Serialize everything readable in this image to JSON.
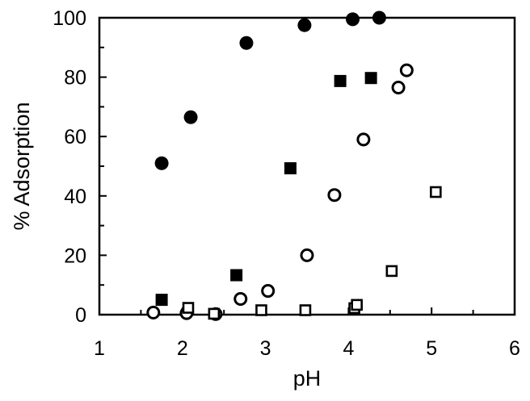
{
  "chart_data": {
    "type": "scatter",
    "title": "",
    "xlabel": "pH",
    "ylabel": "% Adsorption",
    "xlim": [
      1,
      6
    ],
    "ylim": [
      0,
      100
    ],
    "x_ticks": [
      "1",
      "2",
      "3",
      "4",
      "5",
      "6"
    ],
    "y_ticks": [
      "0",
      "20",
      "40",
      "60",
      "80",
      "100"
    ],
    "grid": false,
    "legend": "none",
    "series": [
      {
        "marker": "filled-circle",
        "color": "#000000",
        "points": [
          [
            1.75,
            51
          ],
          [
            2.1,
            66.5
          ],
          [
            2.77,
            91.5
          ],
          [
            3.47,
            97.5
          ],
          [
            4.05,
            99.5
          ],
          [
            4.37,
            100
          ]
        ]
      },
      {
        "marker": "filled-square",
        "color": "#000000",
        "points": [
          [
            1.75,
            5
          ],
          [
            2.65,
            13.3
          ],
          [
            3.3,
            49.3
          ],
          [
            3.9,
            78.7
          ],
          [
            4.27,
            79.7
          ]
        ]
      },
      {
        "marker": "open-circle",
        "color": "#000000",
        "points": [
          [
            1.65,
            0.7
          ],
          [
            2.05,
            0.5
          ],
          [
            2.4,
            0.2
          ],
          [
            2.7,
            5.3
          ],
          [
            3.03,
            8
          ],
          [
            3.5,
            20
          ],
          [
            3.83,
            40.3
          ],
          [
            4.18,
            59
          ],
          [
            4.6,
            76.5
          ],
          [
            4.7,
            82.3
          ]
        ]
      },
      {
        "marker": "open-square",
        "color": "#000000",
        "points": [
          [
            2.07,
            2.3
          ],
          [
            2.38,
            0.3
          ],
          [
            2.95,
            1.5
          ],
          [
            3.48,
            1.5
          ],
          [
            4.07,
            2.2
          ],
          [
            4.1,
            3.3
          ],
          [
            4.52,
            14.7
          ],
          [
            5.05,
            41.3
          ]
        ]
      }
    ]
  }
}
